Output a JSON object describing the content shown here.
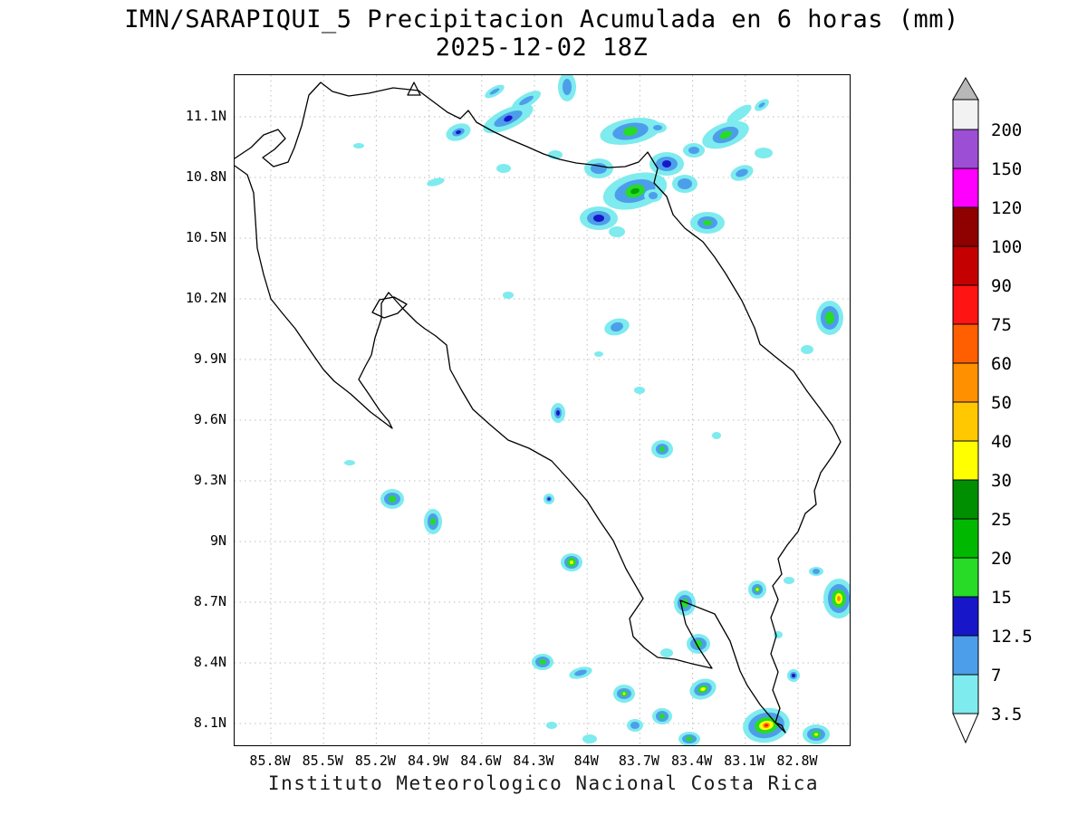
{
  "title": {
    "line1": "IMN/SARAPIQUI_5 Precipitacion Acumulada en 6 horas (mm)",
    "line2": "2025-12-02 18Z"
  },
  "footer": "Instituto Meteorologico Nacional Costa Rica",
  "axes": {
    "lat_labels": [
      "11.1N",
      "10.8N",
      "10.5N",
      "10.2N",
      "9.9N",
      "9.6N",
      "9.3N",
      "9N",
      "8.7N",
      "8.4N",
      "8.1N"
    ],
    "lon_labels": [
      "85.8W",
      "85.5W",
      "85.2W",
      "84.9W",
      "84.6W",
      "84.3W",
      "84W",
      "83.7W",
      "83.4W",
      "83.1W",
      "82.8W"
    ]
  },
  "colorbar": {
    "boundary_labels": [
      "200",
      "150",
      "120",
      "100",
      "90",
      "75",
      "60",
      "50",
      "40",
      "30",
      "25",
      "20",
      "15",
      "12.5",
      "7",
      "3.5"
    ],
    "segment_colors_top_to_bottom": [
      "#9C4FD4",
      "#FF00FF",
      "#8F0000",
      "#C40000",
      "#FF1414",
      "#FF5F00",
      "#FF9000",
      "#FFC800",
      "#FFFF00",
      "#008F00",
      "#00B800",
      "#27DB27",
      "#1717C9",
      "#4D9EEA",
      "#7EEBEE"
    ],
    "over_cap_color": "#F2F2F2",
    "over_arrow_color": "#B8B8B8",
    "under_arrow_color": "#FFFFFF"
  },
  "palette": {
    "c": "#7EEBEE",
    "b": "#4D9EEA",
    "db": "#1717C9",
    "g": "#27DB27",
    "g2": "#00A300",
    "y": "#FFFF00",
    "o": "#FF9000",
    "r": "#FF1414"
  },
  "chart_data": {
    "type": "filled-contour-map",
    "variable": "Precipitacion Acumulada en 6 horas",
    "units": "mm",
    "valid_time": "2025-12-02 18Z",
    "model": "IMN/SARAPIQUI_5",
    "region": "Costa Rica",
    "contour_levels_mm": [
      3.5,
      7,
      12.5,
      15,
      20,
      25,
      30,
      40,
      50,
      60,
      75,
      90,
      100,
      120,
      150,
      200
    ],
    "lat_ticks": [
      11.1,
      10.8,
      10.5,
      10.2,
      9.9,
      9.6,
      9.3,
      9,
      8.7,
      8.4,
      8.1
    ],
    "lon_ticks": [
      -85.8,
      -85.5,
      -85.2,
      -84.9,
      -84.6,
      -84.3,
      -84,
      -83.7,
      -83.4,
      -83.1,
      -82.8
    ],
    "cells": [
      [
        302,
        48,
        -25,
        [
          [
            "c",
            30,
            11
          ],
          [
            "b",
            17,
            6
          ],
          [
            "db",
            5,
            3
          ]
        ]
      ],
      [
        367,
        13,
        0,
        [
          [
            "c",
            10,
            16
          ],
          [
            "b",
            5,
            9
          ]
        ]
      ],
      [
        437,
        62,
        -10,
        [
          [
            "c",
            34,
            14
          ],
          [
            "b",
            20,
            9
          ],
          [
            "g",
            8,
            5
          ]
        ]
      ],
      [
        354,
        88,
        0,
        [
          [
            "c",
            8,
            5
          ]
        ]
      ],
      [
        402,
        103,
        0,
        [
          [
            "c",
            16,
            11
          ],
          [
            "b",
            9,
            6
          ]
        ]
      ],
      [
        442,
        128,
        -15,
        [
          [
            "c",
            36,
            19
          ],
          [
            "b",
            23,
            12
          ],
          [
            "g",
            11,
            7
          ],
          [
            "g2",
            5,
            3
          ]
        ]
      ],
      [
        477,
        98,
        0,
        [
          [
            "c",
            19,
            13
          ],
          [
            "b",
            12,
            8
          ],
          [
            "db",
            5,
            4
          ]
        ]
      ],
      [
        497,
        120,
        0,
        [
          [
            "c",
            14,
            10
          ],
          [
            "b",
            8,
            6
          ]
        ]
      ],
      [
        542,
        66,
        -20,
        [
          [
            "c",
            27,
            13
          ],
          [
            "b",
            15,
            8
          ],
          [
            "g",
            7,
            4
          ]
        ]
      ],
      [
        557,
        43,
        -35,
        [
          [
            "c",
            16,
            6
          ]
        ]
      ],
      [
        582,
        33,
        -35,
        [
          [
            "c",
            9,
            5
          ],
          [
            "b",
            4,
            2
          ]
        ]
      ],
      [
        402,
        158,
        0,
        [
          [
            "c",
            21,
            13
          ],
          [
            "b",
            13,
            8
          ],
          [
            "db",
            6,
            4
          ]
        ]
      ],
      [
        522,
        163,
        0,
        [
          [
            "c",
            19,
            12
          ],
          [
            "b",
            11,
            7
          ],
          [
            "g",
            5,
            3
          ]
        ]
      ],
      [
        222,
        118,
        -15,
        [
          [
            "c",
            10,
            4
          ]
        ]
      ],
      [
        137,
        78,
        0,
        [
          [
            "c",
            6,
            3
          ]
        ]
      ],
      [
        287,
        18,
        -30,
        [
          [
            "c",
            12,
            5
          ],
          [
            "b",
            6,
            2
          ]
        ]
      ],
      [
        657,
        268,
        0,
        [
          [
            "c",
            15,
            19
          ],
          [
            "b",
            10,
            13
          ],
          [
            "g",
            5,
            7
          ]
        ]
      ],
      [
        632,
        303,
        0,
        [
          [
            "c",
            7,
            5
          ]
        ]
      ],
      [
        302,
        243,
        0,
        [
          [
            "c",
            6,
            4
          ]
        ]
      ],
      [
        422,
        278,
        -15,
        [
          [
            "c",
            14,
            9
          ],
          [
            "b",
            7,
            5
          ]
        ]
      ],
      [
        402,
        308,
        0,
        [
          [
            "c",
            5,
            3
          ]
        ]
      ],
      [
        357,
        373,
        0,
        [
          [
            "c",
            8,
            11
          ],
          [
            "b",
            4,
            6
          ],
          [
            "db",
            2,
            3
          ]
        ]
      ],
      [
        447,
        348,
        0,
        [
          [
            "c",
            6,
            4
          ]
        ]
      ],
      [
        472,
        413,
        0,
        [
          [
            "c",
            12,
            10
          ],
          [
            "b",
            7,
            6
          ],
          [
            "g",
            3,
            3
          ]
        ]
      ],
      [
        532,
        398,
        0,
        [
          [
            "c",
            5,
            4
          ]
        ]
      ],
      [
        174,
        468,
        0,
        [
          [
            "c",
            13,
            11
          ],
          [
            "b",
            9,
            7
          ],
          [
            "g",
            4,
            4
          ]
        ]
      ],
      [
        219,
        493,
        0,
        [
          [
            "c",
            10,
            14
          ],
          [
            "b",
            6,
            9
          ],
          [
            "g",
            3,
            4
          ]
        ]
      ],
      [
        127,
        428,
        0,
        [
          [
            "c",
            6,
            3
          ]
        ]
      ],
      [
        347,
        468,
        0,
        [
          [
            "c",
            6,
            6
          ],
          [
            "b",
            3,
            3
          ],
          [
            "db",
            1.5,
            1.5
          ]
        ]
      ],
      [
        372,
        538,
        0,
        [
          [
            "c",
            12,
            10
          ],
          [
            "b",
            8,
            7
          ],
          [
            "g",
            5,
            5
          ],
          [
            "y",
            2,
            2
          ]
        ]
      ],
      [
        497,
        583,
        0,
        [
          [
            "c",
            12,
            14
          ],
          [
            "b",
            8,
            9
          ],
          [
            "g",
            4,
            5
          ]
        ]
      ],
      [
        577,
        568,
        0,
        [
          [
            "c",
            10,
            10
          ],
          [
            "b",
            6,
            6
          ],
          [
            "g",
            3,
            3
          ],
          [
            "y",
            1.5,
            1.5
          ]
        ]
      ],
      [
        612,
        558,
        0,
        [
          [
            "c",
            6,
            4
          ]
        ]
      ],
      [
        642,
        548,
        0,
        [
          [
            "c",
            8,
            5
          ],
          [
            "b",
            4,
            3
          ]
        ]
      ],
      [
        667,
        578,
        0,
        [
          [
            "c",
            17,
            22
          ],
          [
            "b",
            12,
            16
          ],
          [
            "g",
            8,
            10
          ],
          [
            "y",
            4,
            6
          ],
          [
            "o",
            2,
            3
          ]
        ]
      ],
      [
        512,
        628,
        0,
        [
          [
            "c",
            13,
            11
          ],
          [
            "b",
            9,
            7
          ],
          [
            "g",
            4,
            4
          ]
        ]
      ],
      [
        477,
        638,
        0,
        [
          [
            "c",
            7,
            5
          ]
        ]
      ],
      [
        340,
        648,
        0,
        [
          [
            "c",
            12,
            9
          ],
          [
            "b",
            8,
            6
          ],
          [
            "g",
            4,
            3
          ]
        ]
      ],
      [
        382,
        660,
        -15,
        [
          [
            "c",
            13,
            6
          ],
          [
            "b",
            7,
            3
          ]
        ]
      ],
      [
        430,
        683,
        0,
        [
          [
            "c",
            12,
            10
          ],
          [
            "b",
            8,
            6
          ],
          [
            "g",
            4,
            3
          ],
          [
            "y",
            1.5,
            1.5
          ]
        ]
      ],
      [
        472,
        708,
        0,
        [
          [
            "c",
            11,
            9
          ],
          [
            "b",
            7,
            6
          ],
          [
            "g",
            3,
            3
          ]
        ]
      ],
      [
        517,
        678,
        -20,
        [
          [
            "c",
            15,
            11
          ],
          [
            "b",
            10,
            7
          ],
          [
            "g",
            6,
            4
          ],
          [
            "y",
            3,
            2
          ]
        ]
      ],
      [
        587,
        718,
        -10,
        [
          [
            "c",
            26,
            19
          ],
          [
            "b",
            20,
            14
          ],
          [
            "g",
            13,
            9
          ],
          [
            "y",
            8,
            5
          ],
          [
            "o",
            4,
            3
          ],
          [
            "r",
            2,
            1.5
          ]
        ]
      ],
      [
        642,
        728,
        0,
        [
          [
            "c",
            15,
            11
          ],
          [
            "b",
            10,
            7
          ],
          [
            "g",
            5,
            4
          ],
          [
            "y",
            2,
            1.5
          ]
        ]
      ],
      [
        617,
        663,
        0,
        [
          [
            "c",
            7,
            7
          ],
          [
            "b",
            4,
            4
          ],
          [
            "db",
            2,
            2
          ]
        ]
      ],
      [
        600,
        618,
        0,
        [
          [
            "c",
            5,
            4
          ]
        ]
      ],
      [
        442,
        718,
        0,
        [
          [
            "c",
            9,
            7
          ],
          [
            "b",
            5,
            4
          ]
        ]
      ],
      [
        502,
        733,
        0,
        [
          [
            "c",
            12,
            8
          ],
          [
            "b",
            8,
            5
          ],
          [
            "g",
            4,
            2.5
          ]
        ]
      ],
      [
        322,
        28,
        -30,
        [
          [
            "c",
            18,
            7
          ],
          [
            "b",
            9,
            3
          ]
        ]
      ],
      [
        467,
        58,
        0,
        [
          [
            "c",
            10,
            6
          ],
          [
            "b",
            5,
            3
          ]
        ]
      ],
      [
        507,
        83,
        0,
        [
          [
            "c",
            12,
            8
          ],
          [
            "b",
            6,
            4
          ]
        ]
      ],
      [
        462,
        133,
        0,
        [
          [
            "c",
            10,
            7
          ],
          [
            "b",
            5,
            4
          ]
        ]
      ],
      [
        422,
        173,
        0,
        [
          [
            "c",
            9,
            6
          ]
        ]
      ],
      [
        560,
        108,
        -20,
        [
          [
            "c",
            13,
            8
          ],
          [
            "b",
            7,
            4
          ]
        ]
      ],
      [
        584,
        86,
        0,
        [
          [
            "c",
            10,
            6
          ]
        ]
      ],
      [
        247,
        63,
        -20,
        [
          [
            "c",
            14,
            9
          ],
          [
            "b",
            7,
            4
          ],
          [
            "db",
            3,
            2
          ]
        ]
      ],
      [
        297,
        103,
        0,
        [
          [
            "c",
            8,
            5
          ]
        ]
      ],
      [
        392,
        733,
        0,
        [
          [
            "c",
            8,
            5
          ]
        ]
      ],
      [
        350,
        718,
        0,
        [
          [
            "c",
            6,
            4
          ]
        ]
      ]
    ]
  }
}
